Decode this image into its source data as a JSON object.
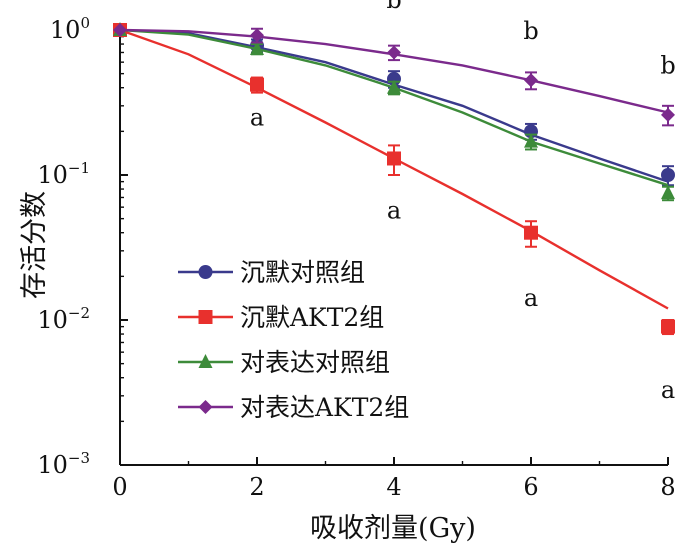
{
  "chart_data": {
    "type": "line",
    "title": "",
    "xlabel": "吸收剂量(Gy)",
    "ylabel": "存活分数",
    "xlim": [
      0,
      8
    ],
    "ylim": [
      0.001,
      1
    ],
    "yscale": "log",
    "x_ticks": [
      "0",
      "2",
      "4",
      "6",
      "8"
    ],
    "y_ticks": [
      {
        "value": 1,
        "base": "10",
        "exp": "0"
      },
      {
        "value": 0.1,
        "base": "10",
        "exp": "−1"
      },
      {
        "value": 0.01,
        "base": "10",
        "exp": "−2"
      },
      {
        "value": 0.001,
        "base": "10",
        "exp": "−3"
      }
    ],
    "x": [
      0,
      2,
      4,
      6,
      8
    ],
    "legend_position": "bottom-left",
    "series": [
      {
        "name": "沉默对照组",
        "color": "#3a3a8c",
        "marker": "circle",
        "values": [
          1.0,
          0.78,
          0.46,
          0.2,
          0.1
        ],
        "errors": [
          0,
          0.08,
          0.06,
          0.025,
          0.015
        ],
        "fit": [
          [
            0,
            1.0
          ],
          [
            1,
            0.95
          ],
          [
            2,
            0.76
          ],
          [
            3,
            0.6
          ],
          [
            4,
            0.42
          ],
          [
            5,
            0.3
          ],
          [
            6,
            0.19
          ],
          [
            7,
            0.13
          ],
          [
            8,
            0.09
          ]
        ]
      },
      {
        "name": "沉默AKT2组",
        "color": "#e8302d",
        "marker": "square",
        "values": [
          1.0,
          0.42,
          0.13,
          0.04,
          0.009
        ],
        "errors": [
          0,
          0.05,
          0.03,
          0.008,
          0.001
        ],
        "fit": [
          [
            0,
            1.0
          ],
          [
            1,
            0.68
          ],
          [
            2,
            0.4
          ],
          [
            3,
            0.23
          ],
          [
            4,
            0.13
          ],
          [
            5,
            0.074
          ],
          [
            6,
            0.041
          ],
          [
            7,
            0.022
          ],
          [
            8,
            0.012
          ]
        ]
      },
      {
        "name": "对表达对照组",
        "color": "#3d8b3a",
        "marker": "triangle",
        "values": [
          1.0,
          0.74,
          0.4,
          0.17,
          0.075
        ],
        "errors": [
          0,
          0.06,
          0.04,
          0.02,
          0.008
        ],
        "fit": [
          [
            0,
            1.0
          ],
          [
            1,
            0.93
          ],
          [
            2,
            0.74
          ],
          [
            3,
            0.57
          ],
          [
            4,
            0.4
          ],
          [
            5,
            0.27
          ],
          [
            6,
            0.17
          ],
          [
            7,
            0.12
          ],
          [
            8,
            0.085
          ]
        ]
      },
      {
        "name": "对表达AKT2组",
        "color": "#7b2a8c",
        "marker": "diamond",
        "values": [
          1.0,
          0.92,
          0.7,
          0.45,
          0.26
        ],
        "errors": [
          0,
          0.1,
          0.08,
          0.06,
          0.04
        ],
        "fit": [
          [
            0,
            1.0
          ],
          [
            1,
            0.98
          ],
          [
            2,
            0.9
          ],
          [
            3,
            0.8
          ],
          [
            4,
            0.68
          ],
          [
            5,
            0.57
          ],
          [
            6,
            0.45
          ],
          [
            7,
            0.35
          ],
          [
            8,
            0.27
          ]
        ]
      }
    ],
    "annotations": [
      {
        "text": "a",
        "x": 2,
        "y": 0.22
      },
      {
        "text": "a",
        "x": 4,
        "y": 0.05
      },
      {
        "text": "a",
        "x": 6,
        "y": 0.0125
      },
      {
        "text": "a",
        "x": 8,
        "y": 0.0029
      },
      {
        "text": "b",
        "x": 4,
        "y": 1.42
      },
      {
        "text": "b",
        "x": 6,
        "y": 0.87
      },
      {
        "text": "b",
        "x": 8,
        "y": 0.5
      }
    ]
  }
}
